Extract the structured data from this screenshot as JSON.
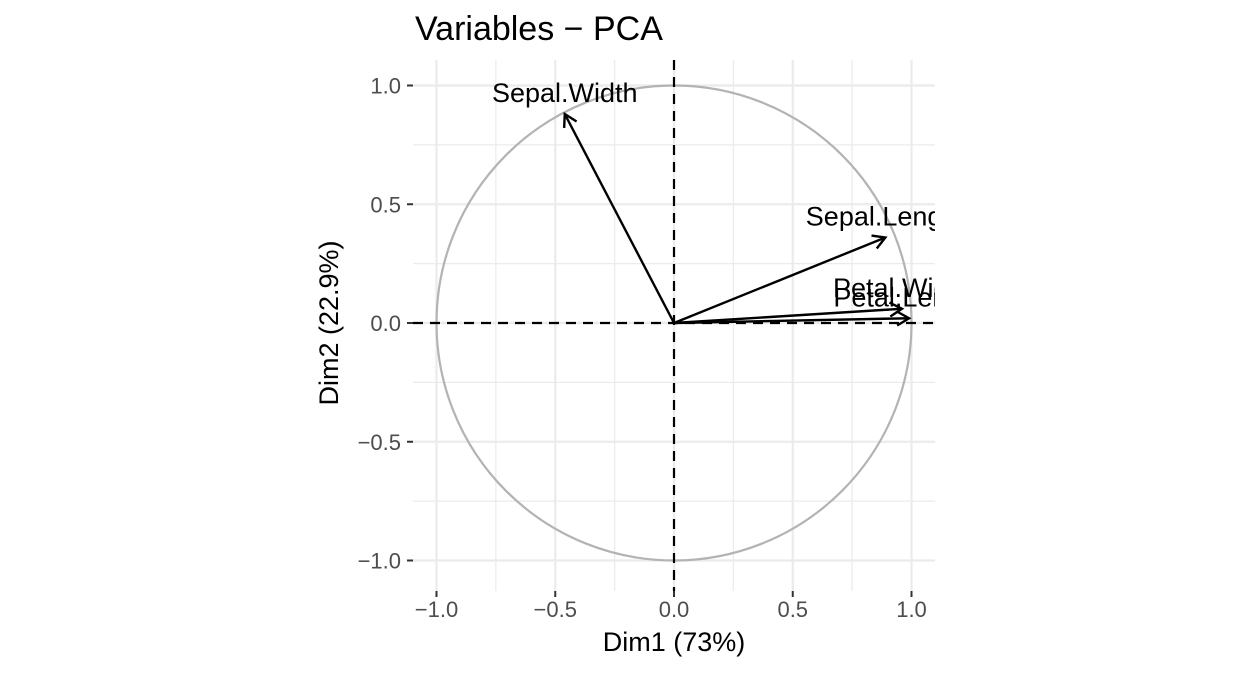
{
  "chart_data": {
    "type": "scatter",
    "title": "Variables − PCA",
    "xlabel": "Dim1 (73%)",
    "ylabel": "Dim2 (22.9%)",
    "xlim": [
      -1.0,
      1.1
    ],
    "ylim": [
      -1.1,
      1.1
    ],
    "xticks": [
      -1.0,
      -0.5,
      0.0,
      0.5,
      1.0
    ],
    "xtick_labels": [
      "−1.0",
      "−0.5",
      "0.0",
      "0.5",
      "1.0"
    ],
    "yticks": [
      -1.0,
      -0.5,
      0.0,
      0.5,
      1.0
    ],
    "ytick_labels": [
      "−1.0",
      "−0.5",
      "0.0",
      "0.5",
      "1.0"
    ],
    "grid": true,
    "correlation_circle": true,
    "reference_lines": [
      "x=0",
      "y=0"
    ],
    "arrow_color": "#000000",
    "circle_color": "#b3b3b3",
    "grid_color": "#ebebeb",
    "variables": [
      {
        "name": "Sepal.Width",
        "x": -0.46,
        "y": 0.88
      },
      {
        "name": "Sepal.Length",
        "x": 0.89,
        "y": 0.36
      },
      {
        "name": "Petal.Width",
        "x": 0.96,
        "y": 0.06
      },
      {
        "name": "Petal.Length",
        "x": 0.99,
        "y": 0.02
      }
    ]
  }
}
